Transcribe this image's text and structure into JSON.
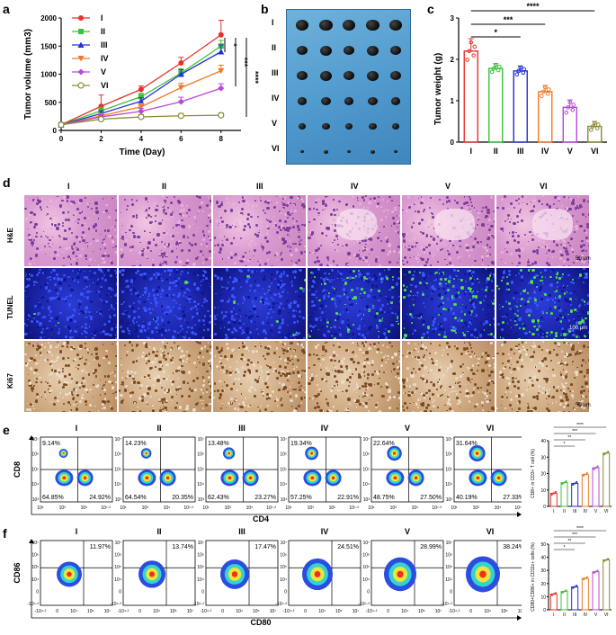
{
  "panels": {
    "a": "a",
    "b": "b",
    "c": "c",
    "d": "d",
    "e": "e",
    "f": "f"
  },
  "groups": [
    "I",
    "II",
    "III",
    "IV",
    "V",
    "VI"
  ],
  "colors": {
    "I": "#e8312a",
    "II": "#38c23a",
    "III": "#2230d8",
    "IV": "#f07a2a",
    "V": "#b848d8",
    "VI": "#8a8a30"
  },
  "chart_data": [
    {
      "id": "a",
      "type": "line",
      "xlabel": "Time (Day)",
      "ylabel": "Tumor volume (mm3)",
      "xlim": [
        0,
        9
      ],
      "ylim": [
        0,
        2000
      ],
      "x_ticks": [
        0,
        2,
        4,
        6,
        8
      ],
      "y_ticks": [
        0,
        500,
        1000,
        1500,
        2000
      ],
      "x": [
        0,
        2,
        4,
        6,
        8
      ],
      "series": [
        {
          "name": "I",
          "values": [
            100,
            430,
            730,
            1200,
            1700
          ],
          "err": [
            20,
            200,
            60,
            100,
            260
          ]
        },
        {
          "name": "II",
          "values": [
            100,
            350,
            600,
            1020,
            1500
          ],
          "err": [
            20,
            60,
            60,
            80,
            100
          ]
        },
        {
          "name": "III",
          "values": [
            100,
            300,
            520,
            1000,
            1400
          ],
          "err": [
            20,
            50,
            60,
            80,
            120
          ]
        },
        {
          "name": "IV",
          "values": [
            100,
            260,
            420,
            760,
            1060
          ],
          "err": [
            20,
            40,
            60,
            80,
            100
          ]
        },
        {
          "name": "V",
          "values": [
            100,
            240,
            340,
            510,
            750
          ],
          "err": [
            20,
            40,
            50,
            80,
            80
          ]
        },
        {
          "name": "VI",
          "values": [
            100,
            200,
            240,
            260,
            270
          ],
          "err": [
            20,
            30,
            40,
            40,
            40
          ]
        }
      ],
      "significance": [
        "*",
        "***",
        "****"
      ]
    },
    {
      "id": "c",
      "type": "bar",
      "ylabel": "Tumor weight (g)",
      "ylim": [
        0,
        3
      ],
      "y_ticks": [
        0,
        1,
        2,
        3
      ],
      "categories": [
        "I",
        "II",
        "III",
        "IV",
        "V",
        "VI"
      ],
      "values": [
        2.2,
        1.78,
        1.72,
        1.22,
        0.84,
        0.38
      ],
      "err": [
        0.3,
        0.12,
        0.12,
        0.15,
        0.18,
        0.12
      ],
      "significance": [
        "****",
        "***",
        "*"
      ]
    },
    {
      "id": "e-bar",
      "type": "bar",
      "ylabel": "CD8+ in CD3+ T cell (%)",
      "ylim": [
        0,
        40
      ],
      "y_ticks": [
        0,
        10,
        20,
        30,
        40
      ],
      "categories": [
        "I",
        "II",
        "III",
        "IV",
        "V",
        "VI"
      ],
      "values": [
        8,
        14.5,
        14,
        19.5,
        23.5,
        32.5
      ],
      "significance": [
        "****",
        "***",
        "**",
        "*"
      ]
    },
    {
      "id": "f-bar",
      "type": "bar",
      "ylabel": "CD80+CD86+ in CD11c+ cells (%)",
      "ylim": [
        0,
        50
      ],
      "y_ticks": [
        0,
        10,
        20,
        30,
        40,
        50
      ],
      "categories": [
        "I",
        "II",
        "III",
        "IV",
        "V",
        "VI"
      ],
      "values": [
        12,
        14,
        17.5,
        24,
        29,
        38
      ],
      "significance": [
        "****",
        "***",
        "**",
        "*"
      ]
    }
  ],
  "panel_d": {
    "rows": [
      "H&E",
      "TUNEL",
      "Ki67"
    ],
    "scalebars": [
      "50 μm",
      "100 μm",
      "50 μm"
    ]
  },
  "panel_e": {
    "ylabel": "CD8",
    "xlabel": "CD4",
    "tick_labels": [
      "10⁷",
      "10⁶",
      "10⁵",
      "10⁴",
      "10³",
      "10¹",
      "10³",
      "10⁵",
      "10⁷·²"
    ],
    "plots": [
      {
        "name": "I",
        "q1": "9.14%",
        "q3": "64.85%",
        "q4": "24.92%"
      },
      {
        "name": "II",
        "q1": "14.23%",
        "q3": "64.54%",
        "q4": "20.35%"
      },
      {
        "name": "III",
        "q1": "13.48%",
        "q3": "62.43%",
        "q4": "23.27%"
      },
      {
        "name": "IV",
        "q1": "19.34%",
        "q3": "57.25%",
        "q4": "22.91%"
      },
      {
        "name": "V",
        "q1": "22.64%",
        "q3": "48.75%",
        "q4": "27.50%"
      },
      {
        "name": "VI",
        "q1": "31.64%",
        "q3": "40.19%",
        "q4": "27.33%"
      }
    ]
  },
  "panel_f": {
    "ylabel": "CD86",
    "xlabel": "CD80",
    "tick_labels": [
      "10⁷",
      "10⁶",
      "10⁵",
      "10⁴",
      "0",
      "-10⁴·²",
      "-10⁴·²",
      "0",
      "10⁴",
      "10⁵",
      "10⁷"
    ],
    "plots": [
      {
        "name": "I",
        "q2": "11.97%"
      },
      {
        "name": "II",
        "q2": "13.74%"
      },
      {
        "name": "III",
        "q2": "17.47%"
      },
      {
        "name": "IV",
        "q2": "24.51%"
      },
      {
        "name": "V",
        "q2": "28.99%"
      },
      {
        "name": "VI",
        "q2": "38.24%"
      }
    ]
  }
}
